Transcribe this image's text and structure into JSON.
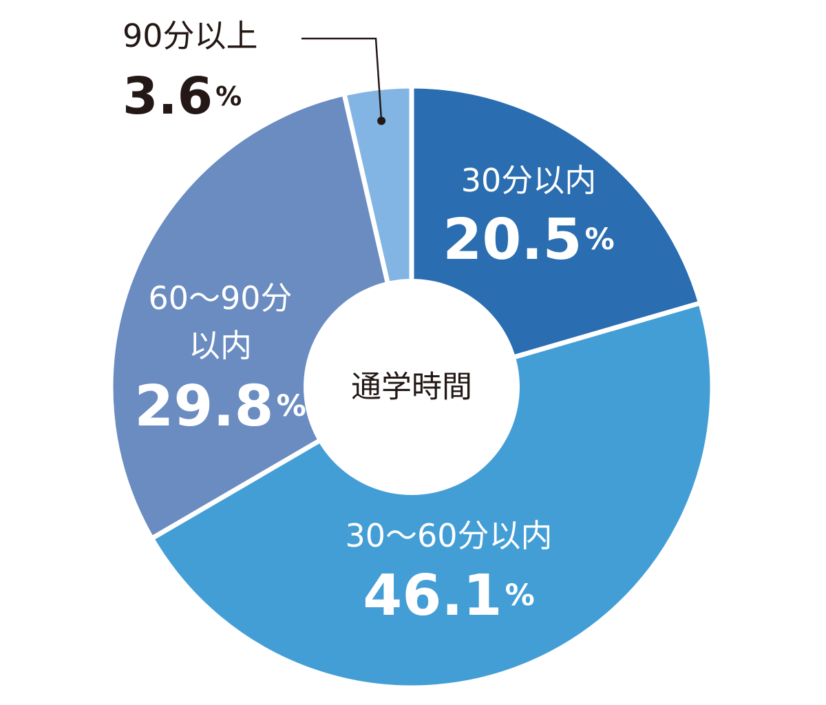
{
  "chart_data": {
    "type": "pie",
    "center_label": "通学時間",
    "percent_symbol": "%",
    "slices": [
      {
        "label": "30分以内",
        "value": 20.5,
        "value_text": "20.5",
        "color": "#2a6db0",
        "text_color": "#ffffff"
      },
      {
        "label": "30〜60分以内",
        "value": 46.1,
        "value_text": "46.1",
        "color": "#439ed6",
        "text_color": "#ffffff"
      },
      {
        "label": "60〜90分以内",
        "value": 29.8,
        "value_text": "29.8",
        "color": "#6a8cc1",
        "text_color": "#ffffff",
        "label_lines": [
          "60〜90分",
          "以内"
        ]
      },
      {
        "label": "90分以上",
        "value": 3.6,
        "value_text": "3.6",
        "color": "#82b5e4",
        "text_color": "#231815"
      }
    ]
  }
}
